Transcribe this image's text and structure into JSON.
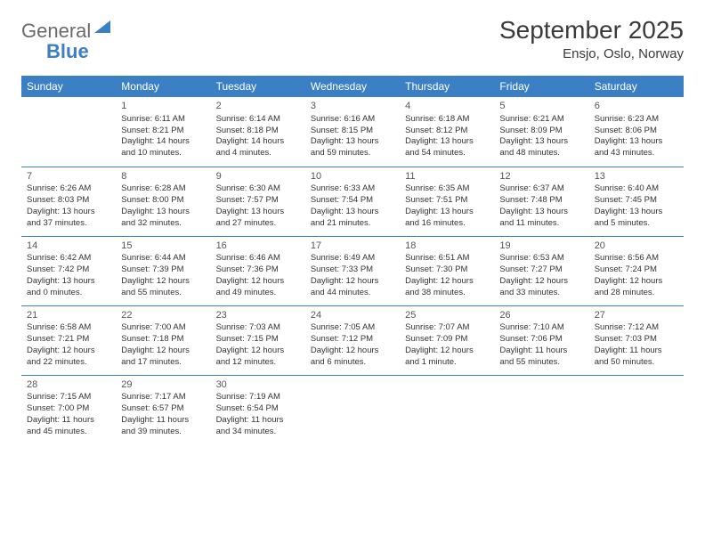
{
  "logo": {
    "text1": "General",
    "text2": "Blue"
  },
  "title": "September 2025",
  "location": "Ensjo, Oslo, Norway",
  "colors": {
    "header_bg": "#3b7fc4",
    "header_text": "#ffffff",
    "border": "#3b7fc4",
    "body_text": "#333333",
    "logo_gray": "#6a6a6a",
    "logo_blue": "#3b7fc4"
  },
  "days_of_week": [
    "Sunday",
    "Monday",
    "Tuesday",
    "Wednesday",
    "Thursday",
    "Friday",
    "Saturday"
  ],
  "weeks": [
    [
      null,
      {
        "n": "1",
        "sr": "Sunrise: 6:11 AM",
        "ss": "Sunset: 8:21 PM",
        "d1": "Daylight: 14 hours",
        "d2": "and 10 minutes."
      },
      {
        "n": "2",
        "sr": "Sunrise: 6:14 AM",
        "ss": "Sunset: 8:18 PM",
        "d1": "Daylight: 14 hours",
        "d2": "and 4 minutes."
      },
      {
        "n": "3",
        "sr": "Sunrise: 6:16 AM",
        "ss": "Sunset: 8:15 PM",
        "d1": "Daylight: 13 hours",
        "d2": "and 59 minutes."
      },
      {
        "n": "4",
        "sr": "Sunrise: 6:18 AM",
        "ss": "Sunset: 8:12 PM",
        "d1": "Daylight: 13 hours",
        "d2": "and 54 minutes."
      },
      {
        "n": "5",
        "sr": "Sunrise: 6:21 AM",
        "ss": "Sunset: 8:09 PM",
        "d1": "Daylight: 13 hours",
        "d2": "and 48 minutes."
      },
      {
        "n": "6",
        "sr": "Sunrise: 6:23 AM",
        "ss": "Sunset: 8:06 PM",
        "d1": "Daylight: 13 hours",
        "d2": "and 43 minutes."
      }
    ],
    [
      {
        "n": "7",
        "sr": "Sunrise: 6:26 AM",
        "ss": "Sunset: 8:03 PM",
        "d1": "Daylight: 13 hours",
        "d2": "and 37 minutes."
      },
      {
        "n": "8",
        "sr": "Sunrise: 6:28 AM",
        "ss": "Sunset: 8:00 PM",
        "d1": "Daylight: 13 hours",
        "d2": "and 32 minutes."
      },
      {
        "n": "9",
        "sr": "Sunrise: 6:30 AM",
        "ss": "Sunset: 7:57 PM",
        "d1": "Daylight: 13 hours",
        "d2": "and 27 minutes."
      },
      {
        "n": "10",
        "sr": "Sunrise: 6:33 AM",
        "ss": "Sunset: 7:54 PM",
        "d1": "Daylight: 13 hours",
        "d2": "and 21 minutes."
      },
      {
        "n": "11",
        "sr": "Sunrise: 6:35 AM",
        "ss": "Sunset: 7:51 PM",
        "d1": "Daylight: 13 hours",
        "d2": "and 16 minutes."
      },
      {
        "n": "12",
        "sr": "Sunrise: 6:37 AM",
        "ss": "Sunset: 7:48 PM",
        "d1": "Daylight: 13 hours",
        "d2": "and 11 minutes."
      },
      {
        "n": "13",
        "sr": "Sunrise: 6:40 AM",
        "ss": "Sunset: 7:45 PM",
        "d1": "Daylight: 13 hours",
        "d2": "and 5 minutes."
      }
    ],
    [
      {
        "n": "14",
        "sr": "Sunrise: 6:42 AM",
        "ss": "Sunset: 7:42 PM",
        "d1": "Daylight: 13 hours",
        "d2": "and 0 minutes."
      },
      {
        "n": "15",
        "sr": "Sunrise: 6:44 AM",
        "ss": "Sunset: 7:39 PM",
        "d1": "Daylight: 12 hours",
        "d2": "and 55 minutes."
      },
      {
        "n": "16",
        "sr": "Sunrise: 6:46 AM",
        "ss": "Sunset: 7:36 PM",
        "d1": "Daylight: 12 hours",
        "d2": "and 49 minutes."
      },
      {
        "n": "17",
        "sr": "Sunrise: 6:49 AM",
        "ss": "Sunset: 7:33 PM",
        "d1": "Daylight: 12 hours",
        "d2": "and 44 minutes."
      },
      {
        "n": "18",
        "sr": "Sunrise: 6:51 AM",
        "ss": "Sunset: 7:30 PM",
        "d1": "Daylight: 12 hours",
        "d2": "and 38 minutes."
      },
      {
        "n": "19",
        "sr": "Sunrise: 6:53 AM",
        "ss": "Sunset: 7:27 PM",
        "d1": "Daylight: 12 hours",
        "d2": "and 33 minutes."
      },
      {
        "n": "20",
        "sr": "Sunrise: 6:56 AM",
        "ss": "Sunset: 7:24 PM",
        "d1": "Daylight: 12 hours",
        "d2": "and 28 minutes."
      }
    ],
    [
      {
        "n": "21",
        "sr": "Sunrise: 6:58 AM",
        "ss": "Sunset: 7:21 PM",
        "d1": "Daylight: 12 hours",
        "d2": "and 22 minutes."
      },
      {
        "n": "22",
        "sr": "Sunrise: 7:00 AM",
        "ss": "Sunset: 7:18 PM",
        "d1": "Daylight: 12 hours",
        "d2": "and 17 minutes."
      },
      {
        "n": "23",
        "sr": "Sunrise: 7:03 AM",
        "ss": "Sunset: 7:15 PM",
        "d1": "Daylight: 12 hours",
        "d2": "and 12 minutes."
      },
      {
        "n": "24",
        "sr": "Sunrise: 7:05 AM",
        "ss": "Sunset: 7:12 PM",
        "d1": "Daylight: 12 hours",
        "d2": "and 6 minutes."
      },
      {
        "n": "25",
        "sr": "Sunrise: 7:07 AM",
        "ss": "Sunset: 7:09 PM",
        "d1": "Daylight: 12 hours",
        "d2": "and 1 minute."
      },
      {
        "n": "26",
        "sr": "Sunrise: 7:10 AM",
        "ss": "Sunset: 7:06 PM",
        "d1": "Daylight: 11 hours",
        "d2": "and 55 minutes."
      },
      {
        "n": "27",
        "sr": "Sunrise: 7:12 AM",
        "ss": "Sunset: 7:03 PM",
        "d1": "Daylight: 11 hours",
        "d2": "and 50 minutes."
      }
    ],
    [
      {
        "n": "28",
        "sr": "Sunrise: 7:15 AM",
        "ss": "Sunset: 7:00 PM",
        "d1": "Daylight: 11 hours",
        "d2": "and 45 minutes."
      },
      {
        "n": "29",
        "sr": "Sunrise: 7:17 AM",
        "ss": "Sunset: 6:57 PM",
        "d1": "Daylight: 11 hours",
        "d2": "and 39 minutes."
      },
      {
        "n": "30",
        "sr": "Sunrise: 7:19 AM",
        "ss": "Sunset: 6:54 PM",
        "d1": "Daylight: 11 hours",
        "d2": "and 34 minutes."
      },
      null,
      null,
      null,
      null
    ]
  ]
}
